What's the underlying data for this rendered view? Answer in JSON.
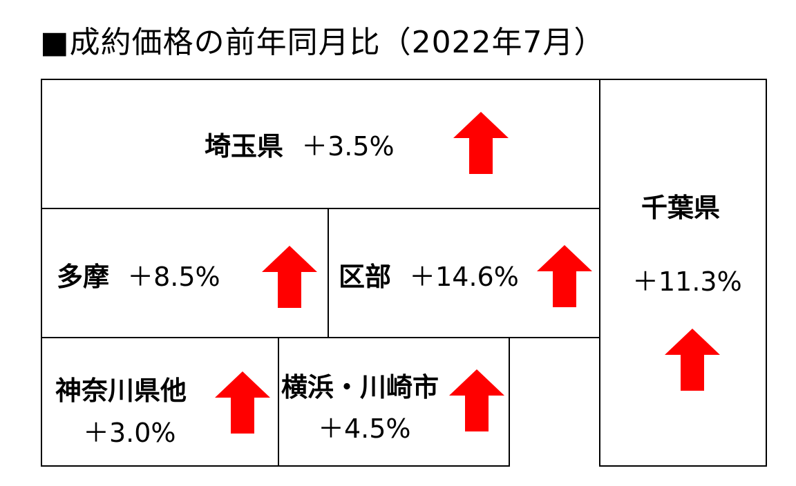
{
  "title": "■成約価格の前年同月比（2022年7月）",
  "arrow_color": "#ff0000",
  "arrow_icon": "up-arrow-icon",
  "regions": {
    "saitama": {
      "name": "埼玉県",
      "value": "＋3.5%"
    },
    "chiba": {
      "name": "千葉県",
      "value": "＋11.3%"
    },
    "tama": {
      "name": "多摩",
      "value": "＋8.5%"
    },
    "kubu": {
      "name": "区部",
      "value": "＋14.6%"
    },
    "kanagawa": {
      "name": "神奈川県他",
      "value": "＋3.0%"
    },
    "yokohama": {
      "name": "横浜・川崎市",
      "value": "＋4.5%"
    }
  }
}
